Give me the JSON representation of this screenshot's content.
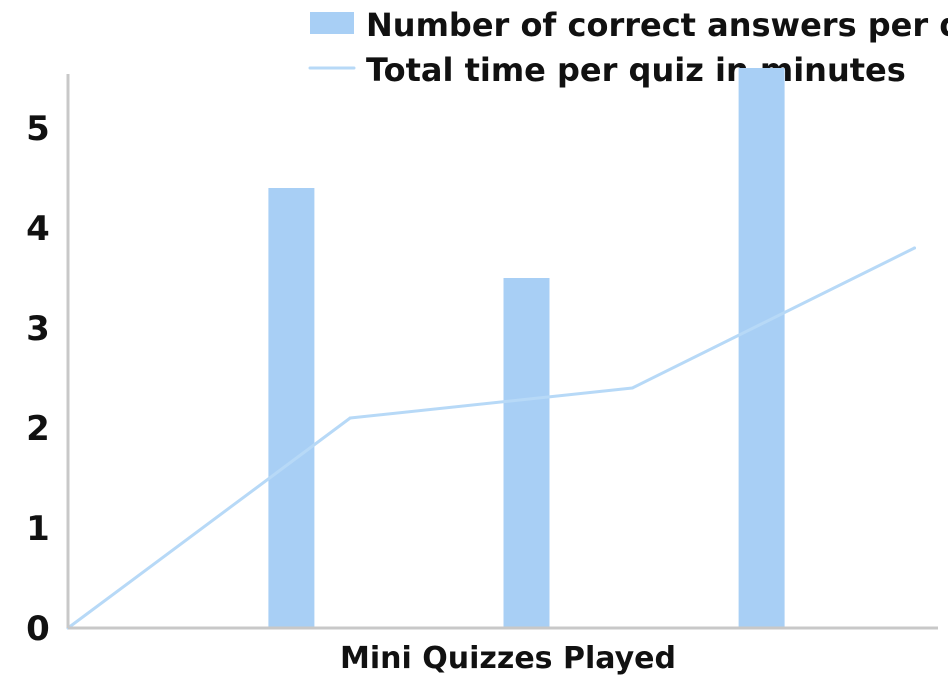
{
  "chart_data": {
    "type": "bar",
    "title": "",
    "xlabel": "Mini Quizzes Played",
    "ylabel": "",
    "ylim": [
      0,
      5.5
    ],
    "yticks": [
      "0",
      "1",
      "2",
      "3",
      "4",
      "5"
    ],
    "xlim": [
      0,
      3.7
    ],
    "grid": false,
    "legend_position": "top-right",
    "bar_series": {
      "name": "Number of correct answers per quiz",
      "color": "#a8cff5",
      "x": [
        0.95,
        1.95,
        2.95
      ],
      "values": [
        4.4,
        3.5,
        5.6
      ]
    },
    "line_series": {
      "name": "Total time per quiz in minutes",
      "color": "#b7d9f7",
      "x": [
        0,
        1.2,
        2.4,
        3.6
      ],
      "values": [
        0,
        2.1,
        2.4,
        3.8
      ]
    }
  },
  "colors": {
    "axis": "#c8c8c8",
    "text": "#111111"
  }
}
